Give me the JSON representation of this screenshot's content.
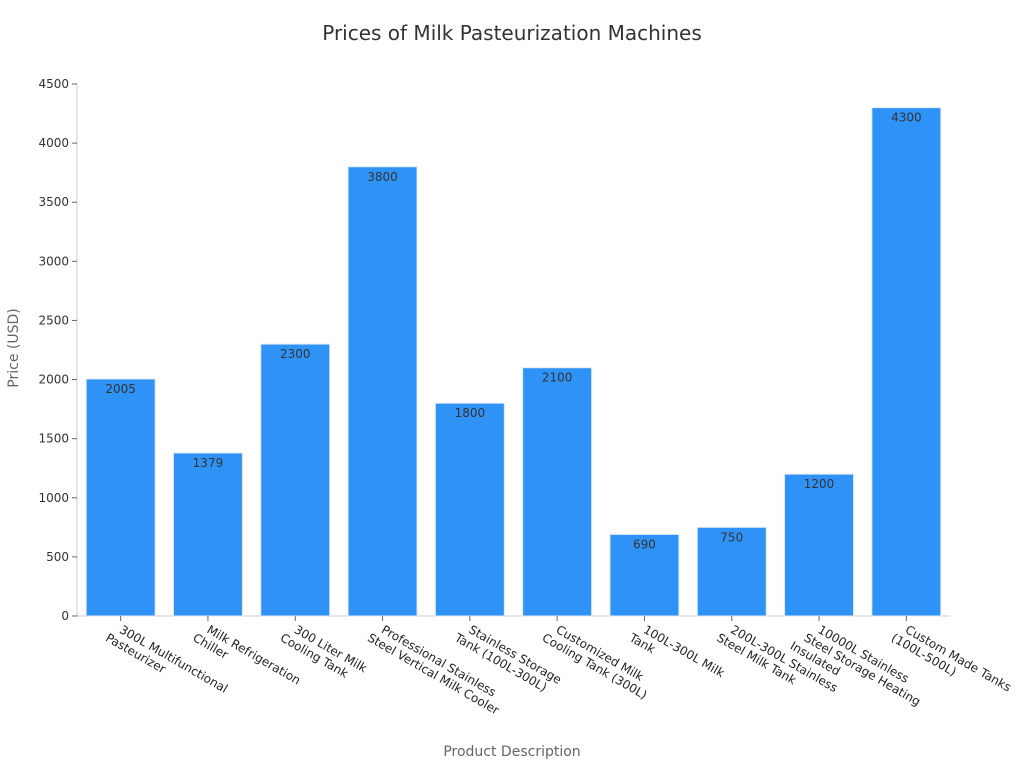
{
  "chart_data": {
    "type": "bar",
    "title": "Prices of Milk Pasteurization Machines",
    "xlabel": "Product Description",
    "ylabel": "Price (USD)",
    "ylim": [
      0,
      4500
    ],
    "yticks": [
      0,
      500,
      1000,
      1500,
      2000,
      2500,
      3000,
      3500,
      4000,
      4500
    ],
    "grid": false,
    "bar_color": "#2e92f7",
    "categories": [
      [
        "300L Multifunctional",
        "Pasteurizer"
      ],
      [
        "Milk Refrigeration",
        "Chiller"
      ],
      [
        "300 Liter Milk",
        "Cooling Tank"
      ],
      [
        "Professional Stainless",
        "Steel Vertical Milk Cooler"
      ],
      [
        "Stainless Storage",
        "Tank (100L-300L)"
      ],
      [
        "Customized Milk",
        "Cooling Tank (300L)"
      ],
      [
        "100L-300L Milk",
        "Tank"
      ],
      [
        "200L-300L Stainless",
        "Steel Milk Tank"
      ],
      [
        "10000L Stainless",
        "Steel Storage Heating",
        "Insulated"
      ],
      [
        "Custom Made Tanks",
        "(100L-500L)"
      ]
    ],
    "values": [
      2005,
      1379,
      2300,
      3800,
      1800,
      2100,
      690,
      750,
      1200,
      4300
    ]
  }
}
